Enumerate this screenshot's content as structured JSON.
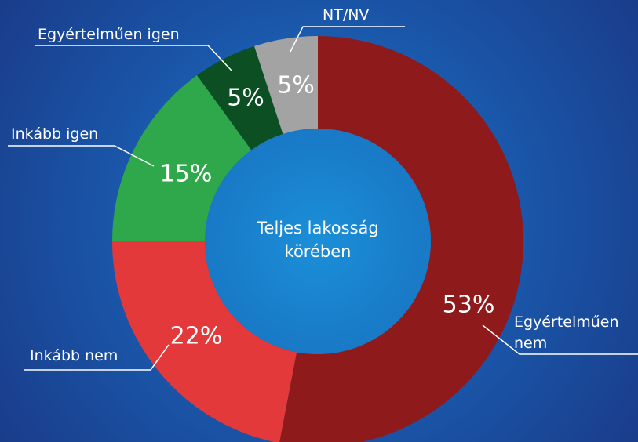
{
  "chart_data": {
    "type": "donut",
    "center_text": [
      "Teljes lakosság",
      "körében"
    ],
    "categories": [
      "Egyértelműen nem",
      "Inkább nem",
      "Inkább igen",
      "Egyértelműen igen",
      "NT/NV"
    ],
    "values": [
      53,
      22,
      15,
      5,
      5
    ],
    "value_labels": [
      "53%",
      "22%",
      "15%",
      "5%",
      "5%"
    ],
    "colors": [
      "#8e1a1c",
      "#e4393a",
      "#2fa84b",
      "#0c4f22",
      "#a3a3a3"
    ]
  }
}
